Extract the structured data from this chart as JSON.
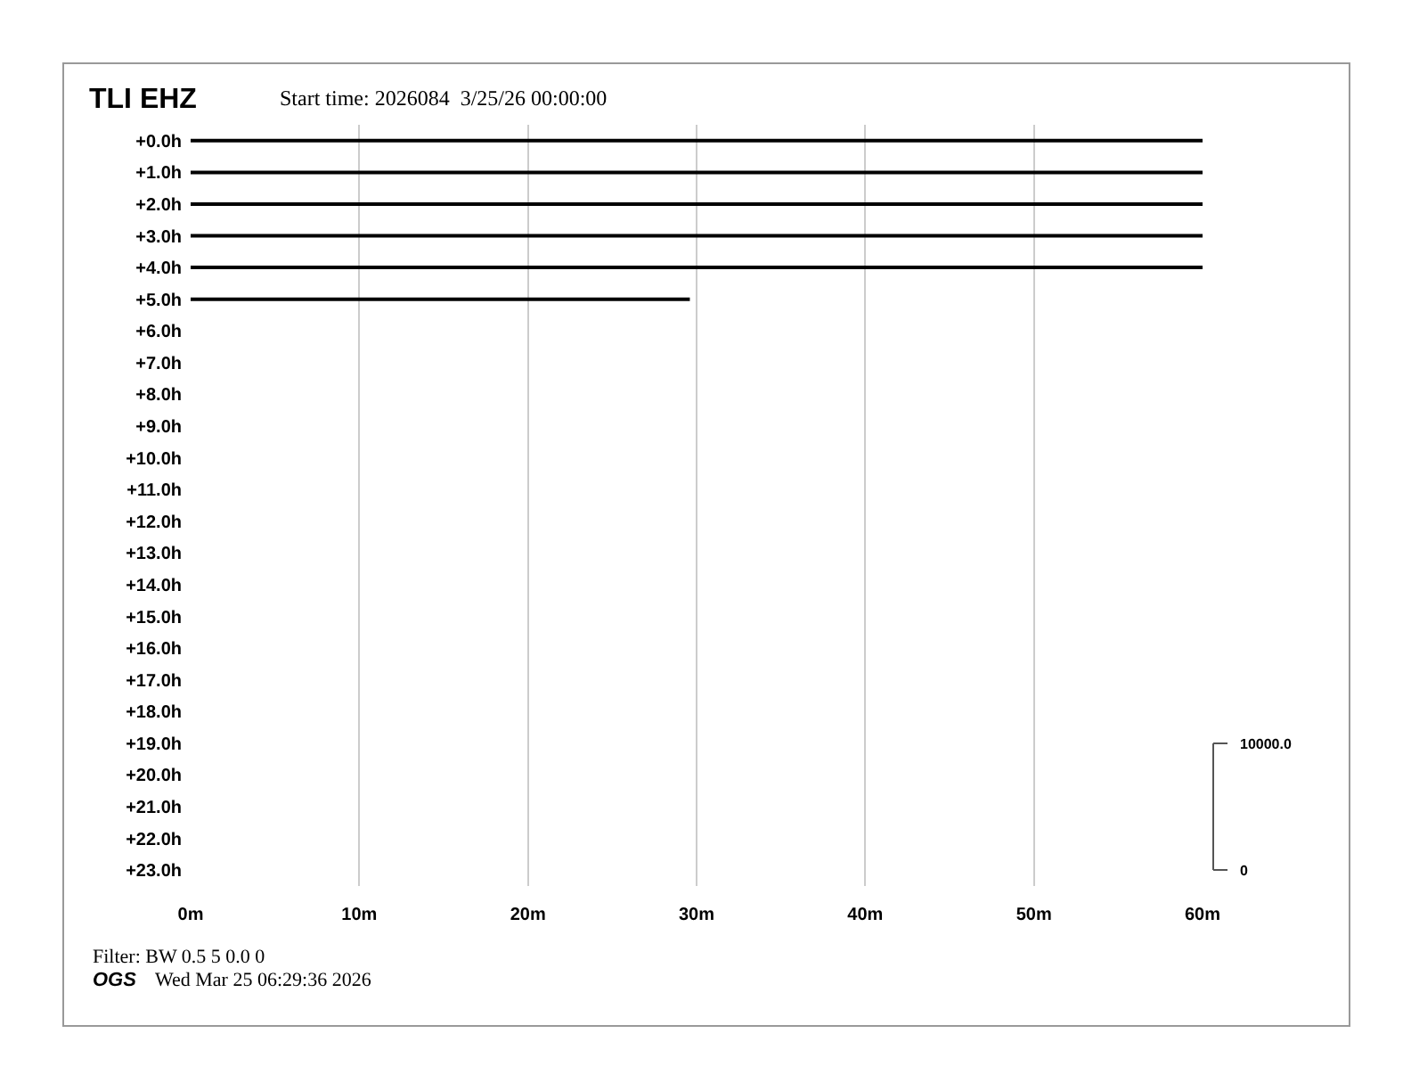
{
  "chart_data": {
    "type": "line",
    "title": "TLI EHZ",
    "subtitle": "Start time: 2026084  3/25/26 00:00:00",
    "annotations": [
      "Filter: BW 0.5 5 0.0 0",
      "OGS",
      "Wed Mar 25 06:29:36 2026",
      "10000.0",
      "0"
    ],
    "series": [
      {
        "color": "#000000",
        "x": [
          0,
          60
        ],
        "values": [
          0,
          0
        ]
      },
      {
        "color": "#000000",
        "x": [
          0,
          60
        ],
        "values": [
          1,
          1
        ]
      },
      {
        "color": "#000000",
        "x": [
          0,
          60
        ],
        "values": [
          2,
          2
        ]
      },
      {
        "color": "#000000",
        "x": [
          0,
          60
        ],
        "values": [
          3,
          3
        ]
      },
      {
        "color": "#000000",
        "x": [
          0,
          60
        ],
        "values": [
          4,
          4
        ]
      },
      {
        "color": "#000000",
        "x": [
          0,
          29.6
        ],
        "values": [
          5,
          5
        ]
      }
    ],
    "xlim": [
      0,
      60
    ],
    "xticks": [
      {
        "value": 0,
        "label": "0m"
      },
      {
        "value": 10,
        "label": "10m"
      },
      {
        "value": 20,
        "label": "20m"
      },
      {
        "value": 30,
        "label": "30m"
      },
      {
        "value": 40,
        "label": "40m"
      },
      {
        "value": 50,
        "label": "50m"
      },
      {
        "value": 60,
        "label": "60m"
      }
    ],
    "ylim": [
      23.5,
      -0.5
    ],
    "yticks": [
      {
        "value": 0,
        "label": "+0.0h"
      },
      {
        "value": 1,
        "label": "+1.0h"
      },
      {
        "value": 2,
        "label": "+2.0h"
      },
      {
        "value": 3,
        "label": "+3.0h"
      },
      {
        "value": 4,
        "label": "+4.0h"
      },
      {
        "value": 5,
        "label": "+5.0h"
      },
      {
        "value": 6,
        "label": "+6.0h"
      },
      {
        "value": 7,
        "label": "+7.0h"
      },
      {
        "value": 8,
        "label": "+8.0h"
      },
      {
        "value": 9,
        "label": "+9.0h"
      },
      {
        "value": 10,
        "label": "+10.0h"
      },
      {
        "value": 11,
        "label": "+11.0h"
      },
      {
        "value": 12,
        "label": "+12.0h"
      },
      {
        "value": 13,
        "label": "+13.0h"
      },
      {
        "value": 14,
        "label": "+14.0h"
      },
      {
        "value": 15,
        "label": "+15.0h"
      },
      {
        "value": 16,
        "label": "+16.0h"
      },
      {
        "value": 17,
        "label": "+17.0h"
      },
      {
        "value": 18,
        "label": "+18.0h"
      },
      {
        "value": 19,
        "label": "+19.0h"
      },
      {
        "value": 20,
        "label": "+20.0h"
      },
      {
        "value": 21,
        "label": "+21.0h"
      },
      {
        "value": 22,
        "label": "+22.0h"
      },
      {
        "value": 23,
        "label": "+23.0h"
      }
    ],
    "grid": "x",
    "line_style": "solid",
    "marker": "none"
  }
}
